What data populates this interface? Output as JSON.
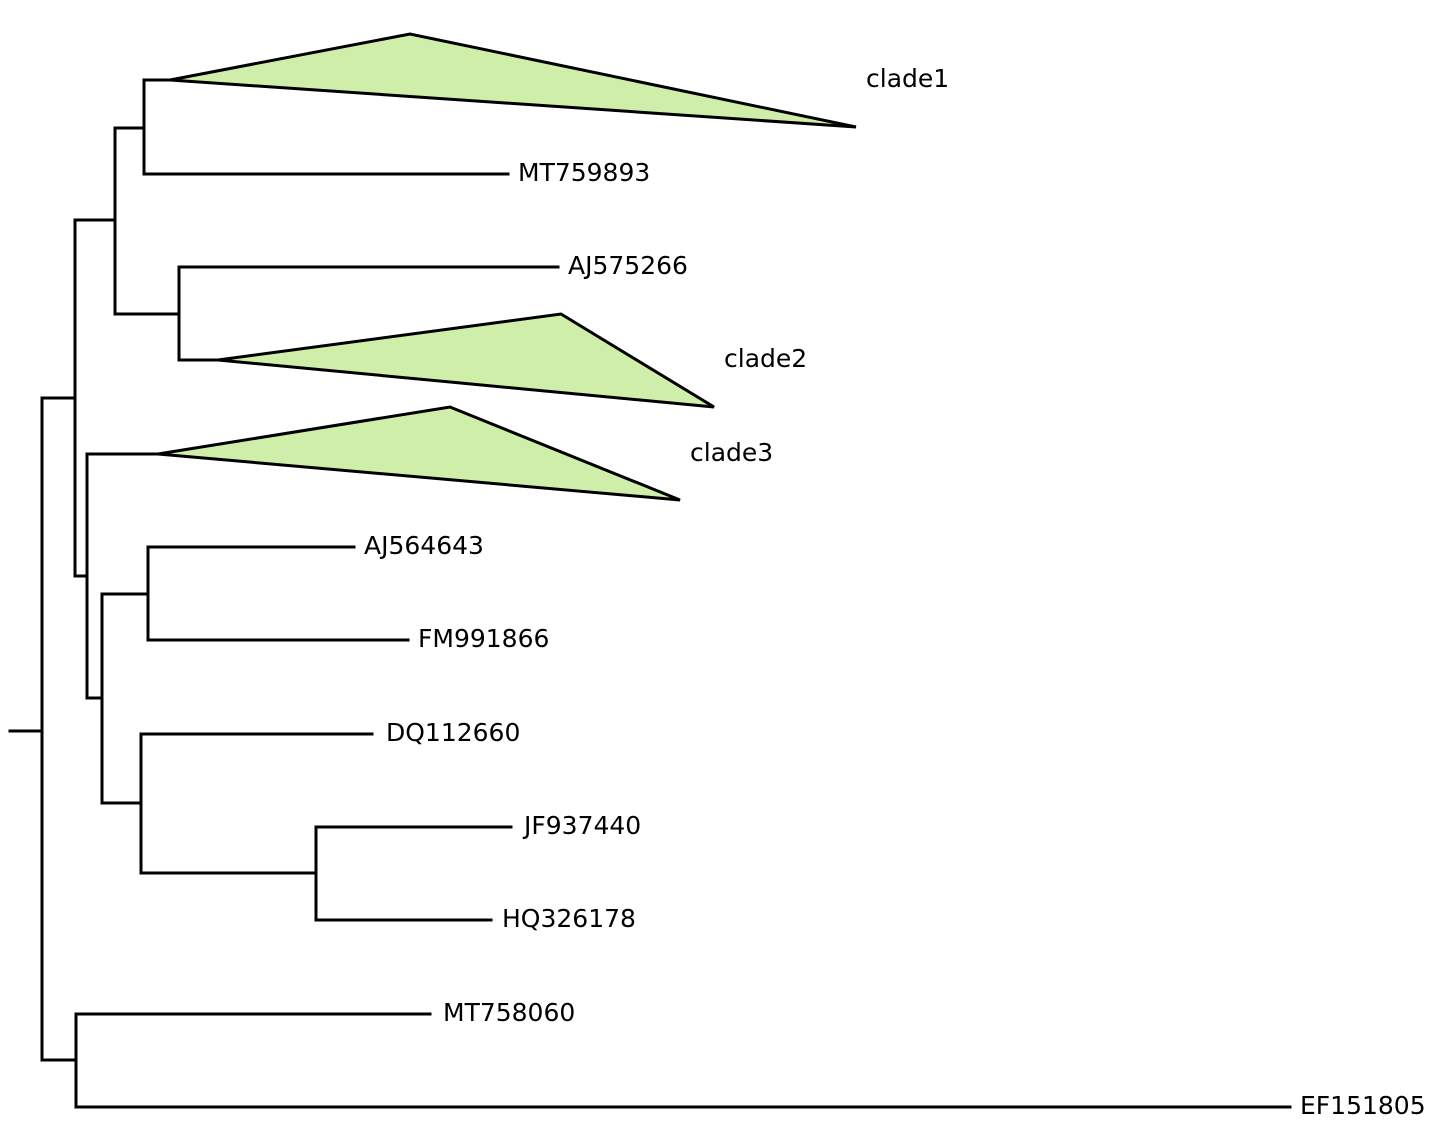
{
  "tree": {
    "clade_fill": "#cfeeaa",
    "line_color": "#000000",
    "tips": [
      {
        "id": "clade1",
        "label": "clade1",
        "collapsed": true
      },
      {
        "id": "MT759893",
        "label": "MT759893",
        "collapsed": false
      },
      {
        "id": "AJ575266",
        "label": "AJ575266",
        "collapsed": false
      },
      {
        "id": "clade2",
        "label": "clade2",
        "collapsed": true
      },
      {
        "id": "clade3",
        "label": "clade3",
        "collapsed": true
      },
      {
        "id": "AJ564643",
        "label": "AJ564643",
        "collapsed": false
      },
      {
        "id": "FM991866",
        "label": "FM991866",
        "collapsed": false
      },
      {
        "id": "DQ112660",
        "label": "DQ112660",
        "collapsed": false
      },
      {
        "id": "JF937440",
        "label": "JF937440",
        "collapsed": false
      },
      {
        "id": "HQ326178",
        "label": "HQ326178",
        "collapsed": false
      },
      {
        "id": "MT758060",
        "label": "MT758060",
        "collapsed": false
      },
      {
        "id": "EF151805",
        "label": "EF151805",
        "collapsed": false
      }
    ]
  }
}
